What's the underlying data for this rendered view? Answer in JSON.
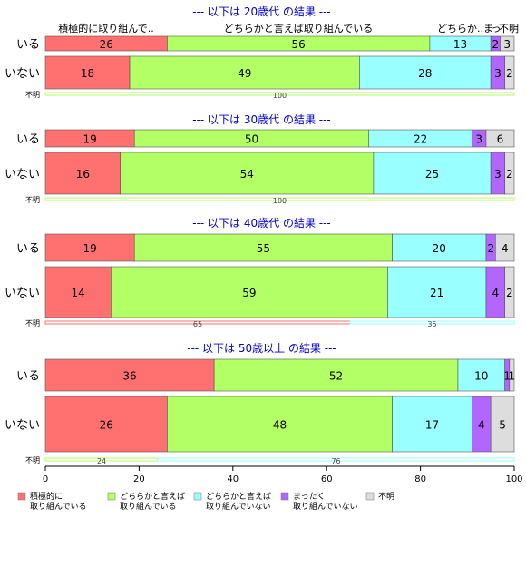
{
  "chart_data": {
    "type": "bar",
    "orientation": "horizontal",
    "stacked": true,
    "xlim": [
      0,
      100
    ],
    "xticks": [
      0,
      20,
      40,
      60,
      80,
      100
    ],
    "categories": [
      "積極的に取り組んでいる",
      "どちらかと言えば取り組んでいる",
      "どちらかと言えば取り組んでいない",
      "まったく取り組んでいない",
      "不明"
    ],
    "top_category_labels": [
      "積極的に取り組んで..",
      "どちらかと言えば取り組んでいる",
      "どちらか..ま",
      "っ",
      "不明"
    ],
    "legend": [
      {
        "lines": [
          "積極的に",
          "取り組んでいる"
        ],
        "color": "#ff7070"
      },
      {
        "lines": [
          "どちらかと言えば",
          "取り組んでいる"
        ],
        "color": "#b3ff66"
      },
      {
        "lines": [
          "どちらかと言えば",
          "取り組んでいない"
        ],
        "color": "#99ffff"
      },
      {
        "lines": [
          "まったく",
          "取り組んでいない"
        ],
        "color": "#b266ff"
      },
      {
        "lines": [
          "不明"
        ],
        "color": "#dddddd"
      }
    ],
    "colors": [
      "#ff7070",
      "#b3ff66",
      "#99ffff",
      "#b266ff",
      "#dddddd"
    ],
    "panels": [
      {
        "title": "--- 以下は 20歳代 の結果 ---",
        "rows": [
          {
            "label": "いる",
            "values": [
              26,
              56,
              13,
              2,
              3
            ]
          },
          {
            "label": "いない",
            "values": [
              18,
              49,
              28,
              3,
              2
            ]
          }
        ],
        "unknown_label": "不明",
        "unknown_values": [
          0,
          100
        ],
        "unknown_colors": [
          "#ff7070",
          "#b3ff66"
        ]
      },
      {
        "title": "--- 以下は 30歳代 の結果 ---",
        "rows": [
          {
            "label": "いる",
            "values": [
              19,
              50,
              22,
              3,
              6
            ]
          },
          {
            "label": "いない",
            "values": [
              16,
              54,
              25,
              3,
              2
            ]
          }
        ],
        "unknown_label": "不明",
        "unknown_values": [
          0,
          100
        ],
        "unknown_colors": [
          "#ff7070",
          "#b3ff66"
        ]
      },
      {
        "title": "--- 以下は 40歳代 の結果 ---",
        "rows": [
          {
            "label": "いる",
            "values": [
              19,
              55,
              20,
              2,
              4
            ]
          },
          {
            "label": "いない",
            "values": [
              14,
              59,
              21,
              4,
              2
            ]
          }
        ],
        "unknown_label": "不明",
        "unknown_values": [
          65,
          35
        ],
        "unknown_colors": [
          "#ff7070",
          "#99ffff"
        ]
      },
      {
        "title": "--- 以下は 50歳以上 の結果 ---",
        "rows": [
          {
            "label": "いる",
            "values": [
              36,
              52,
              10,
              1,
              1
            ]
          },
          {
            "label": "いない",
            "values": [
              26,
              48,
              17,
              4,
              5
            ]
          }
        ],
        "unknown_label": "不明",
        "unknown_values": [
          24,
          76
        ],
        "unknown_colors": [
          "#b3ff66",
          "#99ffff"
        ]
      }
    ]
  }
}
